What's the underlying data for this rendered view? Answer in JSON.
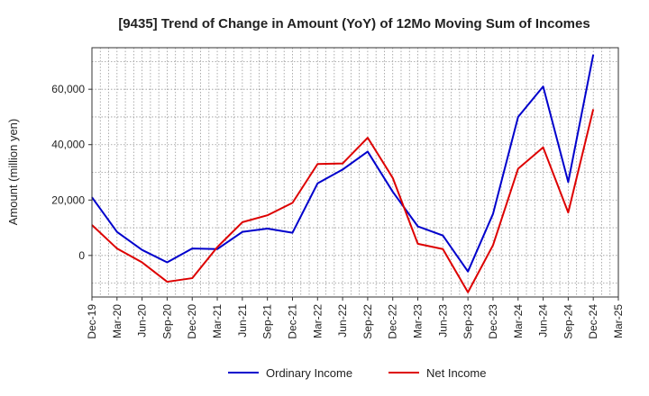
{
  "chart_data": {
    "type": "line",
    "title": "[9435]  Trend of Change in Amount (YoY) of 12Mo Moving Sum of Incomes",
    "ylabel": "Amount (million yen)",
    "xlabel": "",
    "ylim": [
      -15000,
      75000
    ],
    "yticks": [
      0,
      20000,
      40000,
      60000
    ],
    "ytick_labels": [
      "0",
      "20,000",
      "40,000",
      "60,000"
    ],
    "categories": [
      "Dec-19",
      "Mar-20",
      "Jun-20",
      "Sep-20",
      "Dec-20",
      "Mar-21",
      "Jun-21",
      "Sep-21",
      "Dec-21",
      "Mar-22",
      "Jun-22",
      "Sep-22",
      "Dec-22",
      "Mar-23",
      "Jun-23",
      "Sep-23",
      "Dec-23",
      "Mar-24",
      "Jun-24",
      "Sep-24",
      "Dec-24",
      "Mar-25"
    ],
    "series": [
      {
        "name": "Ordinary Income",
        "color": "#0000cc",
        "values": [
          21000,
          8500,
          2000,
          -2500,
          2500,
          2300,
          8500,
          9700,
          8200,
          26000,
          31000,
          37500,
          23000,
          10500,
          7200,
          -5800,
          15000,
          50000,
          61000,
          26500,
          72500,
          null
        ]
      },
      {
        "name": "Net Income",
        "color": "#dd0000",
        "values": [
          11000,
          2500,
          -2500,
          -9500,
          -8200,
          3000,
          12000,
          14500,
          19000,
          33000,
          33200,
          42500,
          28000,
          4200,
          2300,
          -13300,
          3700,
          31300,
          39000,
          15500,
          52800,
          null
        ]
      }
    ],
    "legend": "bottom",
    "grid": true
  }
}
